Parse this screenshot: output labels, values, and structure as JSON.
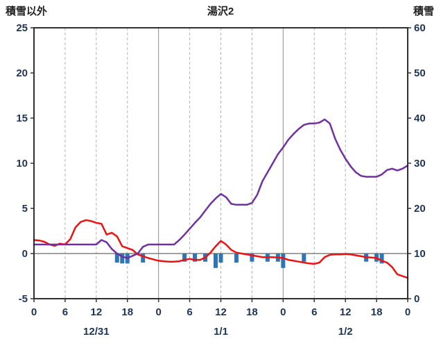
{
  "header": {
    "left_axis_title": "積雪以外",
    "title": "湯沢2",
    "right_axis_title": "積雪"
  },
  "chart_data": {
    "type": "line",
    "title": "湯沢2",
    "grid": "vertical-only",
    "legend": "none",
    "colors": {
      "snow_depth_line": "#7030A0",
      "non_snow_line": "#ee1111",
      "bars": "#2E75B6",
      "frame": "#1a1a1a",
      "grid_dashed": "#b3b3b3",
      "grid_solid": "#8c8c8c",
      "zero_line": "#808080",
      "axis_text": "#1f3455",
      "tick": "#333333"
    },
    "left_axis": {
      "label": "積雪以外",
      "min": -5,
      "max": 25,
      "ticks": [
        25,
        20,
        15,
        10,
        5,
        0,
        -5
      ]
    },
    "right_axis": {
      "label": "積雪",
      "min": 0,
      "max": 60,
      "ticks": [
        60,
        50,
        40,
        30,
        20,
        10,
        0
      ]
    },
    "x_axis": {
      "min_hour": 0,
      "max_hour": 72,
      "tick_interval": 6,
      "tick_labels": [
        "0",
        "6",
        "12",
        "18",
        "0",
        "6",
        "12",
        "18",
        "0",
        "6",
        "12",
        "18",
        "0"
      ],
      "date_labels": [
        {
          "label": "12/31",
          "center_hour": 12
        },
        {
          "label": "1/1",
          "center_hour": 36
        },
        {
          "label": "1/2",
          "center_hour": 60
        }
      ]
    },
    "series": [
      {
        "name": "snow_depth_line",
        "axis": "right",
        "points": [
          [
            0,
            12
          ],
          [
            1,
            12
          ],
          [
            2,
            12
          ],
          [
            3,
            12
          ],
          [
            4,
            12
          ],
          [
            5,
            12
          ],
          [
            6,
            12
          ],
          [
            7,
            12
          ],
          [
            8,
            12
          ],
          [
            9,
            12
          ],
          [
            10,
            12
          ],
          [
            11,
            12
          ],
          [
            12,
            12
          ],
          [
            13,
            13
          ],
          [
            14,
            12.5
          ],
          [
            15,
            11
          ],
          [
            16,
            10
          ],
          [
            17,
            9.3
          ],
          [
            18,
            9
          ],
          [
            19,
            9.5
          ],
          [
            20,
            10
          ],
          [
            21,
            11.5
          ],
          [
            22,
            12
          ],
          [
            23,
            12
          ],
          [
            24,
            12
          ],
          [
            25,
            12
          ],
          [
            26,
            12
          ],
          [
            27,
            12
          ],
          [
            28,
            13
          ],
          [
            29,
            14.2
          ],
          [
            30,
            15.5
          ],
          [
            31,
            16.8
          ],
          [
            32,
            18
          ],
          [
            33,
            19.5
          ],
          [
            34,
            21
          ],
          [
            35,
            22.2
          ],
          [
            36,
            23.2
          ],
          [
            37,
            22.5
          ],
          [
            38,
            21
          ],
          [
            39,
            20.8
          ],
          [
            40,
            20.8
          ],
          [
            41,
            20.8
          ],
          [
            42,
            21.2
          ],
          [
            43,
            23
          ],
          [
            44,
            26
          ],
          [
            45,
            28
          ],
          [
            46,
            30
          ],
          [
            47,
            32
          ],
          [
            48,
            33.5
          ],
          [
            49,
            35.2
          ],
          [
            50,
            36.5
          ],
          [
            51,
            37.6
          ],
          [
            52,
            38.5
          ],
          [
            53,
            38.8
          ],
          [
            54,
            38.8
          ],
          [
            55,
            39
          ],
          [
            56,
            39.7
          ],
          [
            57,
            38.8
          ],
          [
            58,
            35.5
          ],
          [
            59,
            33
          ],
          [
            60,
            31
          ],
          [
            61,
            29.3
          ],
          [
            62,
            28
          ],
          [
            63,
            27.2
          ],
          [
            64,
            27
          ],
          [
            65,
            27
          ],
          [
            66,
            27
          ],
          [
            67,
            27.5
          ],
          [
            68,
            28.5
          ],
          [
            69,
            28.8
          ],
          [
            70,
            28.4
          ],
          [
            71,
            28.8
          ],
          [
            72,
            29.5
          ]
        ]
      },
      {
        "name": "non_snow_line",
        "axis": "left",
        "points": [
          [
            0,
            1.5
          ],
          [
            1,
            1.45
          ],
          [
            2,
            1.3
          ],
          [
            3,
            1.0
          ],
          [
            4,
            0.85
          ],
          [
            5,
            1.1
          ],
          [
            6,
            1.0
          ],
          [
            7,
            1.6
          ],
          [
            8,
            2.9
          ],
          [
            9,
            3.5
          ],
          [
            10,
            3.7
          ],
          [
            11,
            3.6
          ],
          [
            12,
            3.4
          ],
          [
            13,
            3.3
          ],
          [
            14,
            2.1
          ],
          [
            15,
            2.3
          ],
          [
            16,
            1.9
          ],
          [
            17,
            0.8
          ],
          [
            18,
            0.6
          ],
          [
            19,
            0.4
          ],
          [
            20,
            -0.1
          ],
          [
            21,
            -0.3
          ],
          [
            22,
            -0.5
          ],
          [
            23,
            -0.65
          ],
          [
            24,
            -0.8
          ],
          [
            25,
            -0.85
          ],
          [
            26,
            -0.9
          ],
          [
            27,
            -0.9
          ],
          [
            28,
            -0.85
          ],
          [
            29,
            -0.7
          ],
          [
            30,
            -0.6
          ],
          [
            31,
            -0.7
          ],
          [
            32,
            -0.7
          ],
          [
            33,
            -0.45
          ],
          [
            34,
            0.1
          ],
          [
            35,
            0.8
          ],
          [
            36,
            1.4
          ],
          [
            37,
            1.0
          ],
          [
            38,
            0.4
          ],
          [
            39,
            0.1
          ],
          [
            40,
            0
          ],
          [
            41,
            -0.1
          ],
          [
            42,
            -0.2
          ],
          [
            43,
            -0.3
          ],
          [
            44,
            -0.4
          ],
          [
            45,
            -0.4
          ],
          [
            46,
            -0.4
          ],
          [
            47,
            -0.45
          ],
          [
            48,
            -0.5
          ],
          [
            49,
            -0.7
          ],
          [
            50,
            -0.8
          ],
          [
            51,
            -0.9
          ],
          [
            52,
            -1.0
          ],
          [
            53,
            -1.1
          ],
          [
            54,
            -1.15
          ],
          [
            55,
            -1.0
          ],
          [
            56,
            -0.4
          ],
          [
            57,
            -0.15
          ],
          [
            58,
            -0.1
          ],
          [
            59,
            -0.1
          ],
          [
            60,
            -0.05
          ],
          [
            61,
            -0.1
          ],
          [
            62,
            -0.2
          ],
          [
            63,
            -0.3
          ],
          [
            64,
            -0.4
          ],
          [
            65,
            -0.45
          ],
          [
            66,
            -0.5
          ],
          [
            67,
            -0.8
          ],
          [
            68,
            -1.0
          ],
          [
            69,
            -1.5
          ],
          [
            70,
            -2.3
          ],
          [
            71,
            -2.5
          ],
          [
            72,
            -2.7
          ]
        ]
      }
    ],
    "bars": {
      "name": "bars",
      "axis": "left",
      "baseline": 0,
      "values": [
        {
          "hour": 16,
          "value": -1.0
        },
        {
          "hour": 17,
          "value": -1.1
        },
        {
          "hour": 18,
          "value": -1.1
        },
        {
          "hour": 21,
          "value": -1.0
        },
        {
          "hour": 29,
          "value": -0.9
        },
        {
          "hour": 31,
          "value": -0.9
        },
        {
          "hour": 33,
          "value": -0.9
        },
        {
          "hour": 35,
          "value": -1.6
        },
        {
          "hour": 36,
          "value": -1.0
        },
        {
          "hour": 39,
          "value": -1.0
        },
        {
          "hour": 42,
          "value": -0.9
        },
        {
          "hour": 45,
          "value": -0.9
        },
        {
          "hour": 47,
          "value": -0.9
        },
        {
          "hour": 48,
          "value": -1.6
        },
        {
          "hour": 52,
          "value": -0.9
        },
        {
          "hour": 64,
          "value": -0.9
        },
        {
          "hour": 66,
          "value": -0.9
        },
        {
          "hour": 67,
          "value": -1.1
        }
      ]
    }
  }
}
